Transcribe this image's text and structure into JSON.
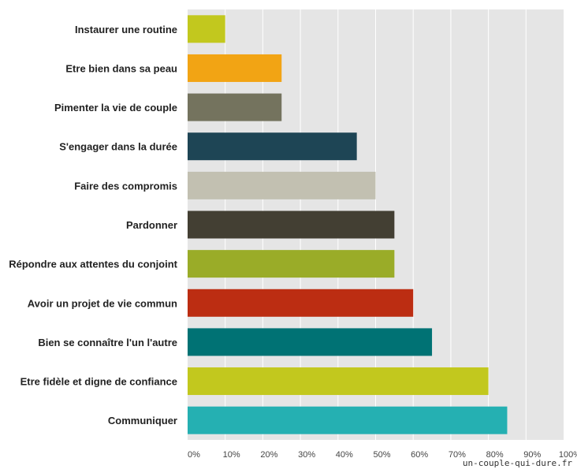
{
  "chart_data": {
    "type": "bar",
    "orientation": "horizontal",
    "categories": [
      "Instaurer une routine",
      "Etre bien dans sa peau",
      "Pimenter la vie de couple",
      "S'engager dans la durée",
      "Faire des compromis",
      "Pardonner",
      "Répondre aux attentes du conjoint",
      "Avoir un projet de vie commun",
      "Bien se connaître l'un l'autre",
      "Etre fidèle et digne de confiance",
      "Communiquer"
    ],
    "values": [
      10,
      25,
      25,
      45,
      50,
      55,
      55,
      60,
      65,
      80,
      85
    ],
    "colors": [
      "#c2c81e",
      "#f2a414",
      "#74735e",
      "#1e4555",
      "#c2c0b1",
      "#433f33",
      "#9aac28",
      "#bc2d12",
      "#007274",
      "#c2c81e",
      "#25b0b2"
    ],
    "xlim": [
      0,
      100
    ],
    "xticks": [
      "0%",
      "10%",
      "20%",
      "30%",
      "40%",
      "50%",
      "60%",
      "70%",
      "80%",
      "90%",
      "100%"
    ],
    "grid": true,
    "background": "#e5e5e5",
    "grid_color": "#ffffff"
  },
  "watermark": "un-couple-qui-dure.fr"
}
